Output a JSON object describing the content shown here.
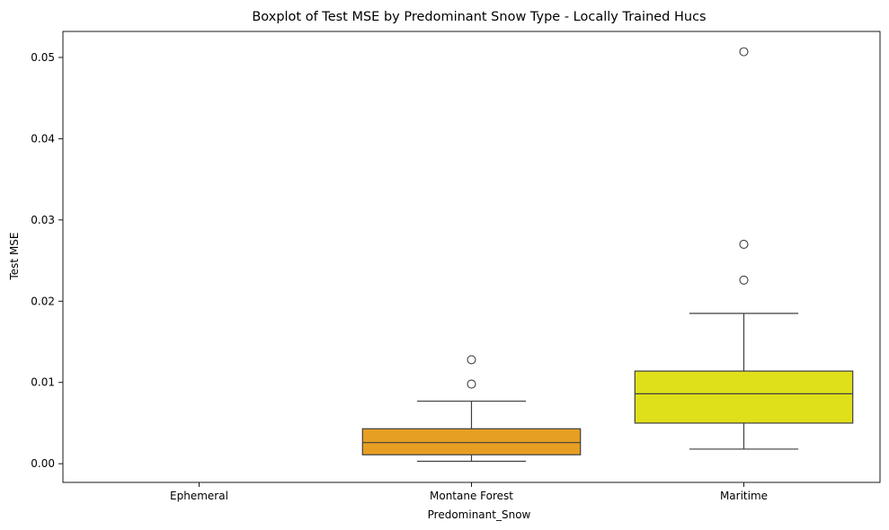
{
  "chart_data": {
    "type": "box",
    "title": "Boxplot of Test MSE by Predominant Snow Type - Locally Trained Hucs",
    "xlabel": "Predominant_Snow",
    "ylabel": "Test MSE",
    "ylim": [
      -0.0023,
      0.0532
    ],
    "yticks": [
      0.0,
      0.01,
      0.02,
      0.03,
      0.04,
      0.05
    ],
    "ytick_labels": [
      "0.00",
      "0.01",
      "0.02",
      "0.03",
      "0.04",
      "0.05"
    ],
    "grid": false,
    "categories": [
      "Ephemeral",
      "Montane Forest",
      "Maritime"
    ],
    "boxes": [
      null,
      {
        "whisker_low": 0.0003,
        "q1": 0.0011,
        "median": 0.0026,
        "q3": 0.0043,
        "whisker_high": 0.0077,
        "outliers": [
          0.0098,
          0.0128
        ],
        "color": "#e69f22"
      },
      {
        "whisker_low": 0.0018,
        "q1": 0.005,
        "median": 0.0086,
        "q3": 0.0114,
        "whisker_high": 0.0185,
        "outliers": [
          0.0226,
          0.027,
          0.0507
        ],
        "color": "#e0e01a"
      }
    ]
  }
}
